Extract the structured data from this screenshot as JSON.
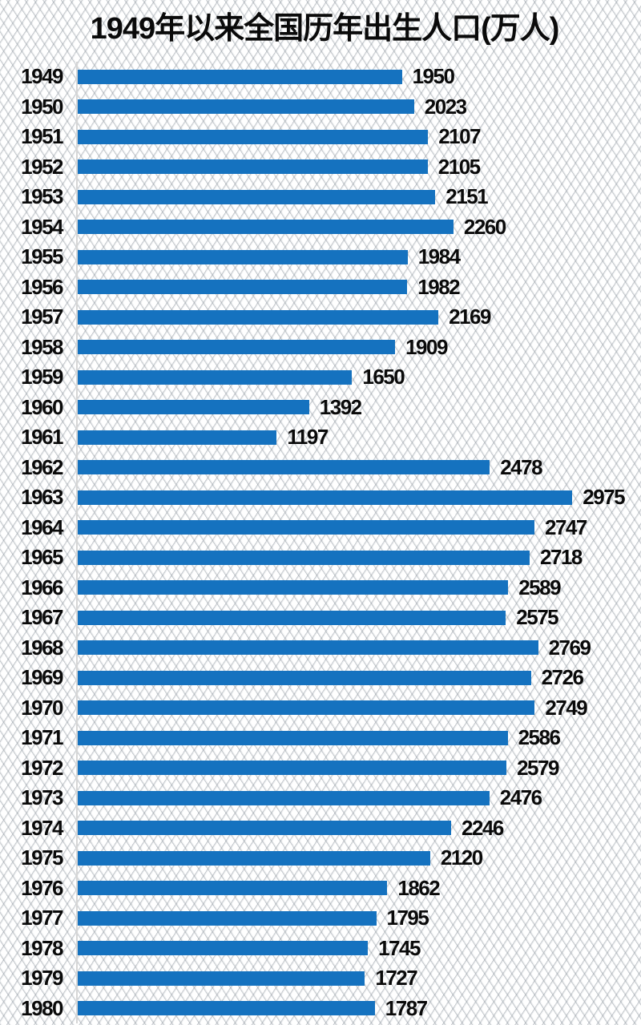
{
  "chart_data": {
    "type": "bar",
    "orientation": "horizontal",
    "title": "1949年以来全国历年出生人口(万人)",
    "unit": "万人",
    "categories": [
      "1949",
      "1950",
      "1951",
      "1952",
      "1953",
      "1954",
      "1955",
      "1956",
      "1957",
      "1958",
      "1959",
      "1960",
      "1961",
      "1962",
      "1963",
      "1964",
      "1965",
      "1966",
      "1967",
      "1968",
      "1969",
      "1970",
      "1971",
      "1972",
      "1973",
      "1974",
      "1975",
      "1976",
      "1977",
      "1978",
      "1979",
      "1980"
    ],
    "values": [
      1950,
      2023,
      2107,
      2105,
      2151,
      2260,
      1984,
      1982,
      2169,
      1909,
      1650,
      1392,
      1197,
      2478,
      2975,
      2747,
      2718,
      2589,
      2575,
      2769,
      2726,
      2749,
      2586,
      2579,
      2476,
      2246,
      2120,
      1862,
      1795,
      1745,
      1727,
      1787
    ],
    "value_labels": true,
    "grid": false,
    "legend": false,
    "xlim": [
      0,
      3000
    ],
    "bar_color": "#1572BF",
    "label_color": "#0a0a0a",
    "axis_line_color": "#d6d6d6",
    "background_color": "#ffffff"
  }
}
